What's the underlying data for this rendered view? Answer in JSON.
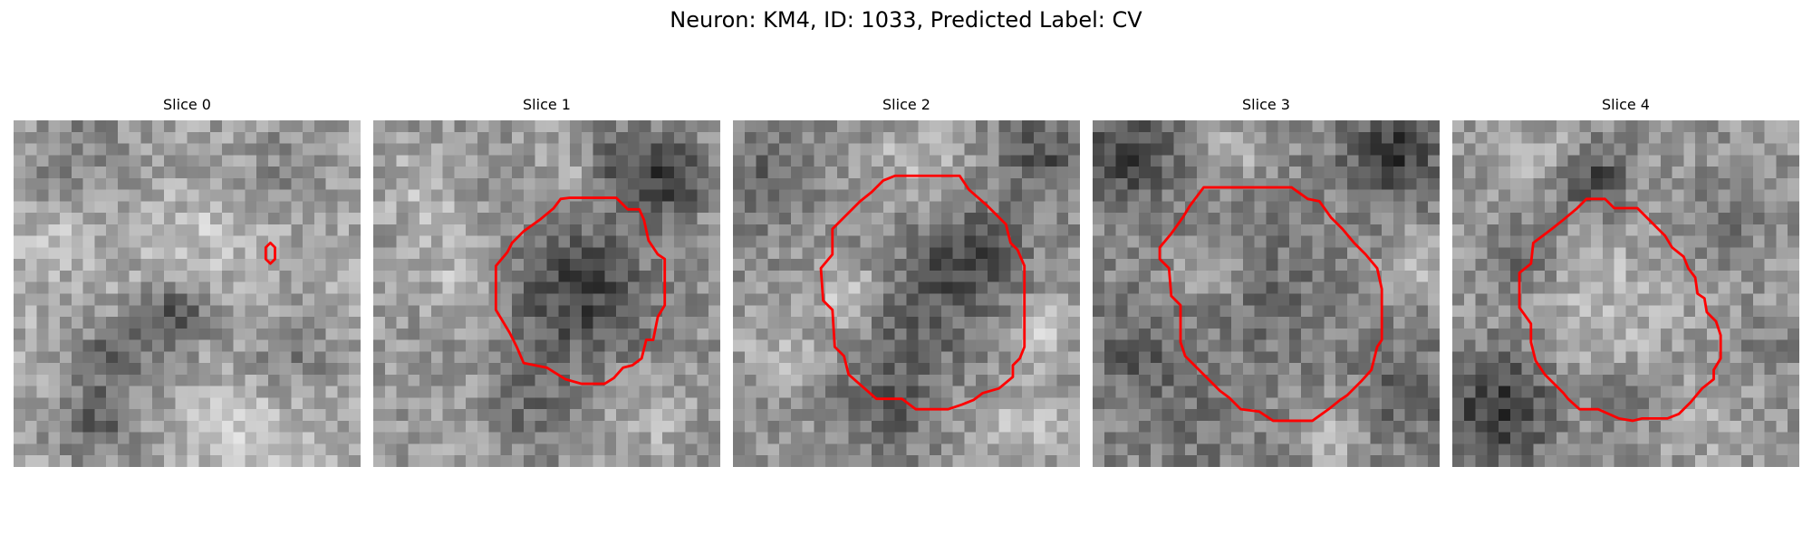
{
  "figure": {
    "title": "Neuron: KM4, ID: 1033, Predicted Label: CV"
  },
  "panels": [
    {
      "title": "Slice 0"
    },
    {
      "title": "Slice 1"
    },
    {
      "title": "Slice 2"
    },
    {
      "title": "Slice 3"
    },
    {
      "title": "Slice 4"
    }
  ],
  "colors": {
    "background": "#ffffff",
    "contour": "#ff0000",
    "colormap": "grayscale"
  }
}
